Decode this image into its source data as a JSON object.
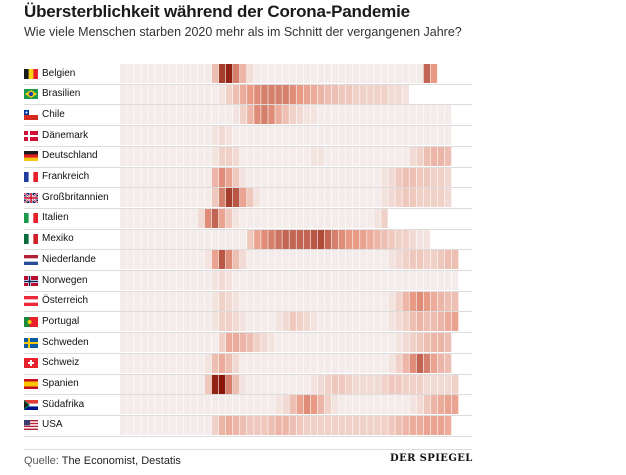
{
  "title": "Übersterblichkeit während der Corona-Pandemie",
  "subtitle": "Wie viele Menschen starben 2020 mehr als im Schnitt der vergangenen Jahre?",
  "source_label": "Quelle:",
  "source_text": "The Economist, Destatis",
  "brand": "DER SPIEGEL",
  "colors": {
    "low": "#f5f5f5",
    "mid": "#e89a85",
    "high": "#8a1608",
    "grid": "#dcdcdc"
  },
  "chart_data": {
    "type": "heatmap",
    "title": "Übersterblichkeit während der Corona-Pandemie",
    "subtitle": "Wie viele Menschen starben 2020 mehr als im Schnitt der vergangenen Jahre?",
    "x_unit_count": 49,
    "value_scale": "0 = keine Übersterblichkeit, 1 = höchste Übersterblichkeit",
    "rows": [
      {
        "name": "Belgien",
        "flag": "BE",
        "values": [
          0.05,
          0.05,
          0.05,
          0.05,
          0.05,
          0.05,
          0.05,
          0.05,
          0.05,
          0.05,
          0.05,
          0.05,
          0.05,
          0.3,
          0.85,
          0.95,
          0.6,
          0.35,
          0.12,
          0.05,
          0.05,
          0.05,
          0.05,
          0.05,
          0.05,
          0.05,
          0.05,
          0.05,
          0.05,
          0.05,
          0.05,
          0.05,
          0.05,
          0.05,
          0.05,
          0.05,
          0.05,
          0.05,
          0.05,
          0.05,
          0.05,
          0.05,
          0.05,
          0.7,
          0.5,
          null,
          null,
          null,
          null
        ]
      },
      {
        "name": "Brasilien",
        "flag": "BR",
        "values": [
          0.05,
          0.05,
          0.05,
          0.05,
          0.05,
          0.05,
          0.05,
          0.05,
          0.05,
          0.05,
          0.05,
          0.05,
          0.05,
          0.05,
          0.1,
          0.2,
          0.3,
          0.4,
          0.5,
          0.55,
          0.6,
          0.6,
          0.6,
          0.6,
          0.55,
          0.5,
          0.45,
          0.4,
          0.35,
          0.3,
          0.3,
          0.25,
          0.25,
          0.2,
          0.2,
          0.2,
          0.2,
          0.2,
          0.15,
          0.15,
          0.1,
          null,
          null,
          null,
          null,
          null,
          null,
          null,
          null
        ]
      },
      {
        "name": "Chile",
        "flag": "CL",
        "values": [
          0.05,
          0.05,
          0.05,
          0.05,
          0.05,
          0.05,
          0.05,
          0.05,
          0.05,
          0.05,
          0.05,
          0.05,
          0.05,
          0.05,
          0.05,
          0.05,
          0.1,
          0.2,
          0.35,
          0.55,
          0.6,
          0.55,
          0.4,
          0.3,
          0.2,
          0.15,
          0.1,
          0.1,
          0.05,
          0.05,
          0.05,
          0.05,
          0.05,
          0.05,
          0.05,
          0.05,
          0.05,
          0.05,
          0.05,
          0.05,
          0.05,
          0.05,
          0.05,
          0.05,
          0.05,
          0.05,
          0.05,
          null,
          null
        ]
      },
      {
        "name": "Dänemark",
        "flag": "DK",
        "values": [
          0.05,
          0.05,
          0.05,
          0.05,
          0.05,
          0.05,
          0.05,
          0.05,
          0.05,
          0.05,
          0.05,
          0.05,
          0.05,
          0.1,
          0.15,
          0.1,
          0.05,
          0.05,
          0.05,
          0.05,
          0.05,
          0.05,
          0.05,
          0.05,
          0.05,
          0.05,
          0.05,
          0.05,
          0.05,
          0.05,
          0.05,
          0.05,
          0.05,
          0.05,
          0.05,
          0.05,
          0.05,
          0.05,
          0.05,
          0.05,
          0.05,
          0.05,
          0.05,
          0.05,
          0.05,
          0.05,
          0.05,
          null,
          null
        ]
      },
      {
        "name": "Deutschland",
        "flag": "DE",
        "values": [
          0.05,
          0.05,
          0.05,
          0.05,
          0.05,
          0.05,
          0.05,
          0.05,
          0.05,
          0.05,
          0.05,
          0.05,
          0.05,
          0.1,
          0.2,
          0.2,
          0.15,
          0.05,
          0.05,
          0.05,
          0.05,
          0.05,
          0.05,
          0.05,
          0.05,
          0.05,
          0.05,
          0.1,
          0.1,
          0.05,
          0.05,
          0.05,
          0.05,
          0.05,
          0.05,
          0.05,
          0.05,
          0.05,
          0.05,
          0.05,
          0.05,
          0.15,
          0.2,
          0.3,
          0.35,
          0.35,
          0.3,
          null,
          null
        ]
      },
      {
        "name": "Frankreich",
        "flag": "FR",
        "values": [
          0.05,
          0.05,
          0.05,
          0.05,
          0.05,
          0.05,
          0.05,
          0.05,
          0.05,
          0.05,
          0.05,
          0.05,
          0.05,
          0.35,
          0.55,
          0.45,
          0.25,
          0.1,
          0.05,
          0.05,
          0.05,
          0.05,
          0.05,
          0.05,
          0.05,
          0.05,
          0.05,
          0.05,
          0.05,
          0.05,
          0.05,
          0.05,
          0.05,
          0.05,
          0.05,
          0.05,
          0.05,
          0.1,
          0.15,
          0.25,
          0.3,
          0.3,
          0.25,
          0.25,
          0.2,
          0.2,
          0.15,
          null,
          null
        ]
      },
      {
        "name": "Großbritannien",
        "flag": "GB",
        "values": [
          0.05,
          0.05,
          0.05,
          0.05,
          0.05,
          0.05,
          0.05,
          0.05,
          0.05,
          0.05,
          0.05,
          0.05,
          0.05,
          0.25,
          0.6,
          0.85,
          0.75,
          0.45,
          0.25,
          0.1,
          0.05,
          0.05,
          0.05,
          0.05,
          0.05,
          0.05,
          0.05,
          0.05,
          0.05,
          0.05,
          0.05,
          0.05,
          0.05,
          0.05,
          0.05,
          0.05,
          0.05,
          0.1,
          0.15,
          0.2,
          0.25,
          0.25,
          0.2,
          0.2,
          0.2,
          0.2,
          0.15,
          null,
          null
        ]
      },
      {
        "name": "Italien",
        "flag": "IT",
        "values": [
          0.05,
          0.05,
          0.05,
          0.05,
          0.05,
          0.05,
          0.05,
          0.05,
          0.05,
          0.05,
          0.05,
          0.15,
          0.55,
          0.7,
          0.45,
          0.25,
          0.1,
          0.05,
          0.05,
          0.05,
          0.05,
          0.05,
          0.05,
          0.05,
          0.05,
          0.05,
          0.05,
          0.05,
          0.05,
          0.05,
          0.05,
          0.05,
          0.05,
          0.05,
          0.05,
          0.05,
          0.1,
          0.2,
          null,
          null,
          null,
          null,
          null,
          null,
          null,
          null,
          null,
          null,
          null
        ]
      },
      {
        "name": "Mexiko",
        "flag": "MX",
        "values": [
          0.05,
          0.05,
          0.05,
          0.05,
          0.05,
          0.05,
          0.05,
          0.05,
          0.05,
          0.05,
          0.05,
          0.05,
          0.05,
          0.05,
          0.05,
          0.05,
          0.05,
          0.05,
          0.25,
          0.45,
          0.55,
          0.6,
          0.65,
          0.7,
          0.7,
          0.7,
          0.7,
          0.75,
          0.8,
          0.7,
          0.6,
          0.55,
          0.5,
          0.5,
          0.45,
          0.4,
          0.35,
          0.3,
          0.25,
          0.2,
          0.2,
          0.15,
          0.1,
          0.1,
          null,
          null,
          null,
          null,
          null
        ]
      },
      {
        "name": "Niederlande",
        "flag": "NL",
        "values": [
          0.05,
          0.05,
          0.05,
          0.05,
          0.05,
          0.05,
          0.05,
          0.05,
          0.05,
          0.05,
          0.05,
          0.05,
          0.1,
          0.45,
          0.75,
          0.55,
          0.3,
          0.15,
          0.05,
          0.05,
          0.05,
          0.05,
          0.05,
          0.05,
          0.05,
          0.05,
          0.05,
          0.05,
          0.05,
          0.05,
          0.05,
          0.05,
          0.05,
          0.05,
          0.05,
          0.05,
          0.05,
          0.05,
          0.1,
          0.15,
          0.2,
          0.25,
          0.25,
          0.2,
          0.2,
          0.25,
          0.3,
          0.3,
          null
        ]
      },
      {
        "name": "Norwegen",
        "flag": "NO",
        "values": [
          0.05,
          0.05,
          0.05,
          0.05,
          0.05,
          0.05,
          0.05,
          0.05,
          0.05,
          0.05,
          0.05,
          0.05,
          0.05,
          0.1,
          0.15,
          0.1,
          0.05,
          0.05,
          0.05,
          0.05,
          0.05,
          0.05,
          0.05,
          0.05,
          0.05,
          0.05,
          0.05,
          0.05,
          0.05,
          0.05,
          0.05,
          0.05,
          0.05,
          0.05,
          0.05,
          0.05,
          0.05,
          0.05,
          0.05,
          0.05,
          0.05,
          0.05,
          0.05,
          0.05,
          0.05,
          0.05,
          0.05,
          0.05,
          null
        ]
      },
      {
        "name": "Österreich",
        "flag": "AT",
        "values": [
          0.05,
          0.05,
          0.05,
          0.05,
          0.05,
          0.05,
          0.05,
          0.05,
          0.05,
          0.05,
          0.05,
          0.05,
          0.05,
          0.1,
          0.2,
          0.15,
          0.1,
          0.05,
          0.05,
          0.05,
          0.05,
          0.05,
          0.05,
          0.05,
          0.05,
          0.05,
          0.05,
          0.05,
          0.05,
          0.05,
          0.05,
          0.05,
          0.05,
          0.05,
          0.05,
          0.05,
          0.05,
          0.05,
          0.1,
          0.2,
          0.35,
          0.5,
          0.55,
          0.5,
          0.4,
          0.35,
          0.3,
          0.3,
          null
        ]
      },
      {
        "name": "Portugal",
        "flag": "PT",
        "values": [
          0.05,
          0.05,
          0.05,
          0.05,
          0.05,
          0.05,
          0.05,
          0.05,
          0.05,
          0.05,
          0.05,
          0.05,
          0.05,
          0.1,
          0.2,
          0.2,
          0.15,
          0.1,
          0.05,
          0.05,
          0.05,
          0.05,
          0.1,
          0.15,
          0.25,
          0.2,
          0.15,
          0.1,
          0.05,
          0.05,
          0.05,
          0.05,
          0.05,
          0.05,
          0.05,
          0.05,
          0.05,
          0.05,
          0.1,
          0.15,
          0.2,
          0.3,
          0.35,
          0.3,
          0.3,
          0.35,
          0.4,
          0.45,
          null
        ]
      },
      {
        "name": "Schweden",
        "flag": "SE",
        "values": [
          0.05,
          0.05,
          0.05,
          0.05,
          0.05,
          0.05,
          0.05,
          0.05,
          0.05,
          0.05,
          0.05,
          0.05,
          0.05,
          0.05,
          0.2,
          0.4,
          0.4,
          0.35,
          0.3,
          0.2,
          0.15,
          0.1,
          0.05,
          0.05,
          0.05,
          0.05,
          0.05,
          0.05,
          0.05,
          0.05,
          0.05,
          0.05,
          0.05,
          0.05,
          0.05,
          0.05,
          0.05,
          0.05,
          0.05,
          0.1,
          0.15,
          0.2,
          0.25,
          0.3,
          0.35,
          0.35,
          0.3,
          null,
          null
        ]
      },
      {
        "name": "Schweiz",
        "flag": "CH",
        "values": [
          0.05,
          0.05,
          0.05,
          0.05,
          0.05,
          0.05,
          0.05,
          0.05,
          0.05,
          0.05,
          0.05,
          0.05,
          0.1,
          0.3,
          0.4,
          0.3,
          0.15,
          0.05,
          0.05,
          0.05,
          0.05,
          0.05,
          0.05,
          0.05,
          0.05,
          0.05,
          0.05,
          0.05,
          0.05,
          0.05,
          0.05,
          0.05,
          0.05,
          0.05,
          0.05,
          0.05,
          0.05,
          0.05,
          0.1,
          0.2,
          0.35,
          0.55,
          0.7,
          0.6,
          0.45,
          0.35,
          0.3,
          null,
          null
        ]
      },
      {
        "name": "Spanien",
        "flag": "ES",
        "values": [
          0.05,
          0.05,
          0.05,
          0.05,
          0.05,
          0.05,
          0.05,
          0.05,
          0.05,
          0.05,
          0.05,
          0.05,
          0.25,
          0.95,
          1.0,
          0.6,
          0.3,
          0.1,
          0.05,
          0.05,
          0.05,
          0.05,
          0.05,
          0.05,
          0.05,
          0.05,
          0.05,
          0.1,
          0.15,
          0.2,
          0.25,
          0.25,
          0.2,
          0.15,
          0.15,
          0.15,
          0.15,
          0.2,
          0.25,
          0.25,
          0.2,
          0.2,
          0.2,
          0.15,
          0.15,
          0.15,
          0.15,
          0.2,
          null
        ]
      },
      {
        "name": "Südafrika",
        "flag": "ZA",
        "values": [
          0.05,
          0.05,
          0.05,
          0.05,
          0.05,
          0.05,
          0.05,
          0.05,
          0.05,
          0.05,
          0.05,
          0.05,
          0.05,
          0.05,
          0.05,
          0.05,
          0.05,
          0.05,
          0.05,
          0.05,
          0.05,
          0.05,
          0.1,
          0.15,
          0.3,
          0.45,
          0.55,
          0.5,
          0.35,
          0.2,
          0.1,
          0.05,
          0.05,
          0.05,
          0.05,
          0.05,
          0.05,
          0.05,
          0.05,
          0.05,
          0.05,
          0.1,
          0.15,
          0.25,
          0.35,
          0.4,
          0.45,
          0.45,
          null
        ]
      },
      {
        "name": "USA",
        "flag": "US",
        "values": [
          0.05,
          0.05,
          0.05,
          0.05,
          0.05,
          0.05,
          0.05,
          0.05,
          0.05,
          0.05,
          0.05,
          0.05,
          0.05,
          0.2,
          0.35,
          0.4,
          0.35,
          0.3,
          0.25,
          0.25,
          0.25,
          0.3,
          0.35,
          0.35,
          0.3,
          0.25,
          0.2,
          0.2,
          0.2,
          0.2,
          0.2,
          0.2,
          0.2,
          0.2,
          0.2,
          0.2,
          0.2,
          0.2,
          0.25,
          0.3,
          0.35,
          0.4,
          0.4,
          0.45,
          0.45,
          0.45,
          0.4,
          null,
          null
        ]
      }
    ]
  }
}
